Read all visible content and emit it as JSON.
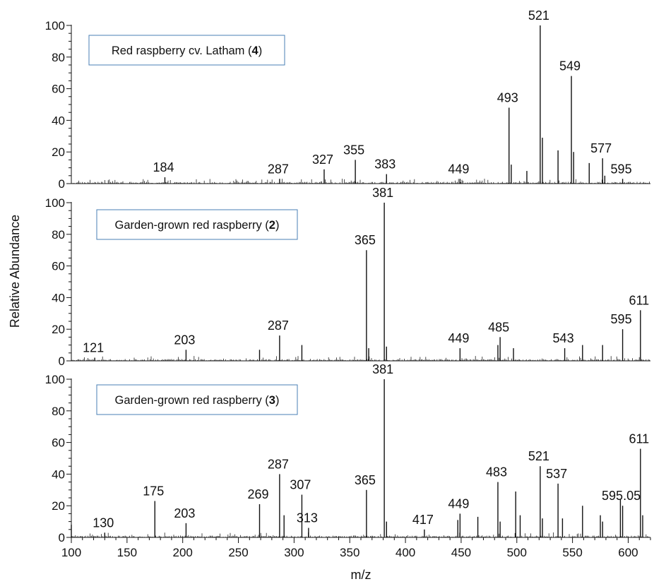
{
  "chart_data": {
    "type": "line",
    "subtype": "mass-spectrum stick plot (3 stacked panels)",
    "xlabel": "m/z",
    "ylabel": "Relative Abundance",
    "xlim": [
      100,
      620
    ],
    "x_ticks": [
      100,
      150,
      200,
      250,
      300,
      350,
      400,
      450,
      500,
      550,
      600
    ],
    "ylim": [
      0,
      100
    ],
    "y_ticks": [
      0,
      20,
      40,
      60,
      80,
      100
    ],
    "panels": [
      {
        "title": "Red raspberry cv. Latham (",
        "title_num": "4",
        "title_end": ")",
        "peaks": [
          {
            "mz": 184,
            "y": 4,
            "label": "184"
          },
          {
            "mz": 287,
            "y": 3,
            "label": "287"
          },
          {
            "mz": 327,
            "y": 9,
            "label": "327"
          },
          {
            "mz": 355,
            "y": 15,
            "label": "355"
          },
          {
            "mz": 383,
            "y": 6,
            "label": "383"
          },
          {
            "mz": 449,
            "y": 3,
            "label": "449"
          },
          {
            "mz": 493,
            "y": 48,
            "label": "493"
          },
          {
            "mz": 495,
            "y": 12
          },
          {
            "mz": 509,
            "y": 8
          },
          {
            "mz": 521,
            "y": 100,
            "label": "521"
          },
          {
            "mz": 523,
            "y": 29
          },
          {
            "mz": 537,
            "y": 21
          },
          {
            "mz": 549,
            "y": 68,
            "label": "549"
          },
          {
            "mz": 551,
            "y": 20
          },
          {
            "mz": 565,
            "y": 13
          },
          {
            "mz": 577,
            "y": 16,
            "label": "577"
          },
          {
            "mz": 579,
            "y": 5
          },
          {
            "mz": 595,
            "y": 3,
            "label": "595"
          }
        ]
      },
      {
        "title": "Garden-grown red raspberry (",
        "title_num": "2",
        "title_end": ")",
        "peaks": [
          {
            "mz": 121,
            "y": 2,
            "label": "121"
          },
          {
            "mz": 203,
            "y": 7,
            "label": "203"
          },
          {
            "mz": 269,
            "y": 7
          },
          {
            "mz": 287,
            "y": 16,
            "label": "287"
          },
          {
            "mz": 307,
            "y": 10
          },
          {
            "mz": 365,
            "y": 70,
            "label": "365"
          },
          {
            "mz": 367,
            "y": 8
          },
          {
            "mz": 381,
            "y": 100,
            "label": "381"
          },
          {
            "mz": 383,
            "y": 9
          },
          {
            "mz": 449,
            "y": 8,
            "label": "449"
          },
          {
            "mz": 483,
            "y": 10
          },
          {
            "mz": 485,
            "y": 15,
            "label": "485"
          },
          {
            "mz": 497,
            "y": 8
          },
          {
            "mz": 543,
            "y": 8,
            "label": "543"
          },
          {
            "mz": 559,
            "y": 10
          },
          {
            "mz": 577,
            "y": 10
          },
          {
            "mz": 595,
            "y": 20,
            "label": "595"
          },
          {
            "mz": 611,
            "y": 32,
            "label": "611"
          }
        ]
      },
      {
        "title": "Garden-grown red raspberry (",
        "title_num": "3",
        "title_end": ")",
        "peaks": [
          {
            "mz": 100,
            "y": 8
          },
          {
            "mz": 130,
            "y": 3,
            "label": "130"
          },
          {
            "mz": 175,
            "y": 23,
            "label": "175"
          },
          {
            "mz": 203,
            "y": 9,
            "label": "203"
          },
          {
            "mz": 269,
            "y": 21,
            "label": "269"
          },
          {
            "mz": 287,
            "y": 40,
            "label": "287"
          },
          {
            "mz": 291,
            "y": 14
          },
          {
            "mz": 307,
            "y": 27,
            "label": "307"
          },
          {
            "mz": 313,
            "y": 6,
            "label": "313"
          },
          {
            "mz": 365,
            "y": 30,
            "label": "365"
          },
          {
            "mz": 381,
            "y": 100,
            "label": "381"
          },
          {
            "mz": 383,
            "y": 10
          },
          {
            "mz": 417,
            "y": 5,
            "label": "417"
          },
          {
            "mz": 447,
            "y": 11
          },
          {
            "mz": 449,
            "y": 15,
            "label": "449"
          },
          {
            "mz": 465,
            "y": 13
          },
          {
            "mz": 483,
            "y": 35,
            "label": "483"
          },
          {
            "mz": 485,
            "y": 10
          },
          {
            "mz": 499,
            "y": 29
          },
          {
            "mz": 503,
            "y": 14
          },
          {
            "mz": 521,
            "y": 45,
            "label": "521"
          },
          {
            "mz": 523,
            "y": 12
          },
          {
            "mz": 537,
            "y": 34,
            "label": "537"
          },
          {
            "mz": 541,
            "y": 12
          },
          {
            "mz": 559,
            "y": 20
          },
          {
            "mz": 575,
            "y": 14
          },
          {
            "mz": 577,
            "y": 10
          },
          {
            "mz": 593,
            "y": 24
          },
          {
            "mz": 595,
            "y": 20,
            "label": "595.05"
          },
          {
            "mz": 611,
            "y": 56,
            "label": "611"
          },
          {
            "mz": 613,
            "y": 14
          }
        ]
      }
    ]
  }
}
